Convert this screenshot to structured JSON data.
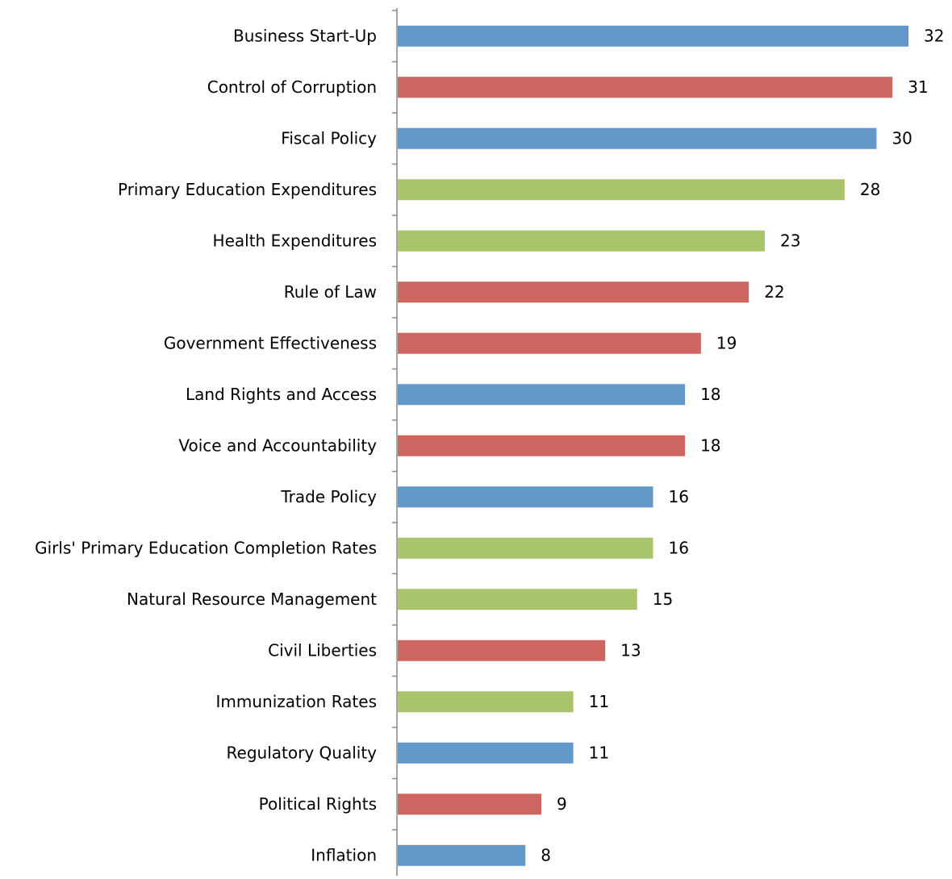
{
  "chart_data": {
    "type": "bar",
    "orientation": "horizontal",
    "categories": [
      "Business Start-Up",
      "Control of Corruption",
      "Fiscal Policy",
      "Primary Education Expenditures",
      "Health Expenditures",
      "Rule of Law",
      "Government Effectiveness",
      "Land Rights and Access",
      "Voice and Accountability",
      "Trade Policy",
      "Girls' Primary Education Completion Rates",
      "Natural Resource Management",
      "Civil Liberties",
      "Immunization Rates",
      "Regulatory Quality",
      "Political Rights",
      "Inflation"
    ],
    "values": [
      32,
      31,
      30,
      28,
      23,
      22,
      19,
      18,
      18,
      16,
      16,
      15,
      13,
      11,
      11,
      9,
      8
    ],
    "colors": [
      "#6398cb",
      "#cd6560",
      "#6398cb",
      "#a9c46b",
      "#a9c46b",
      "#cd6560",
      "#cd6560",
      "#6398cb",
      "#cd6560",
      "#6398cb",
      "#a9c46b",
      "#a9c46b",
      "#cd6560",
      "#a9c46b",
      "#6398cb",
      "#cd6560",
      "#6398cb"
    ]
  }
}
